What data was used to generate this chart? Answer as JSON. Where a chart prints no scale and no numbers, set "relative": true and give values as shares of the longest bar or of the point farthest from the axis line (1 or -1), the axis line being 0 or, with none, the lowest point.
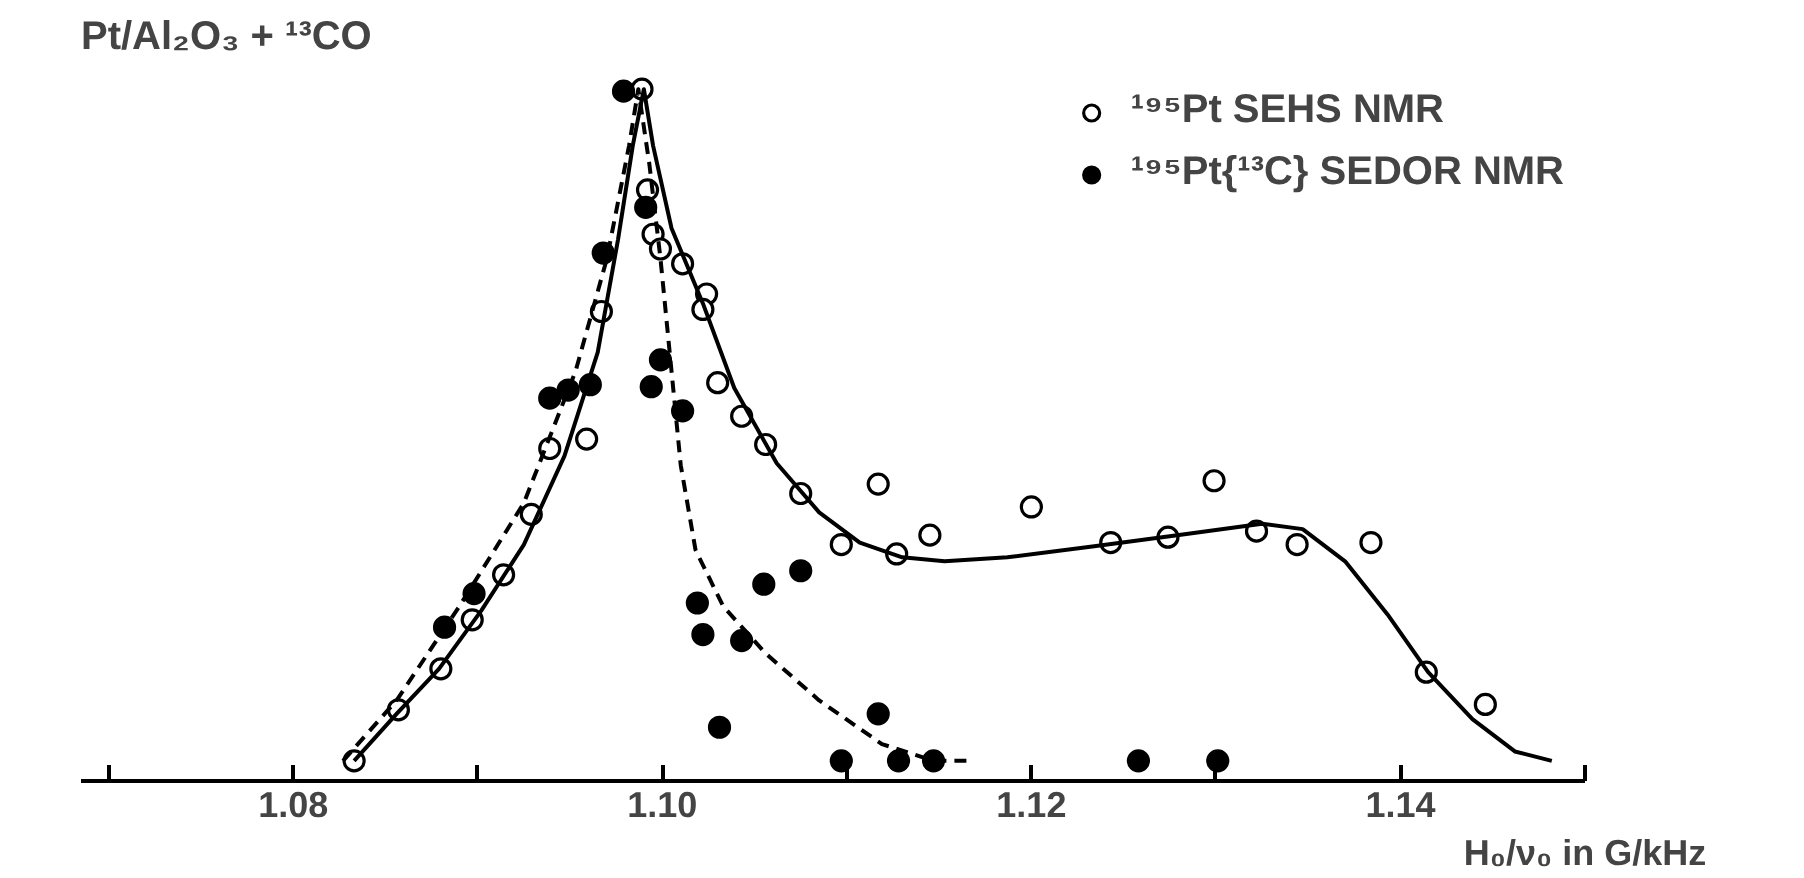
{
  "chart_data": {
    "type": "scatter",
    "title": "Pt/Al₂O₃ + ¹³CO",
    "xlabel": "H₀/ν₀ in G/kHz",
    "relative": true,
    "legend": "top right",
    "grid": false,
    "xlim": [
      1.0685,
      1.15
    ],
    "xticks": [
      {
        "value": 1.07,
        "label": null
      },
      1.08,
      {
        "value": 1.09,
        "label": null
      },
      {
        "value": 1.1,
        "label": "1.10"
      },
      {
        "value": 1.11,
        "label": null
      },
      1.12,
      {
        "value": 1.13,
        "label": null
      },
      1.14,
      {
        "value": 1.15,
        "label": null
      }
    ],
    "series": [
      {
        "name": "¹⁹⁵Pt SEHS NMR",
        "marker": "circle",
        "color": "#000000",
        "x": [
          1.0833,
          1.0857,
          1.088,
          1.0897,
          1.0914,
          1.0929,
          1.0939,
          1.0959,
          1.0967,
          1.0989,
          1.0992,
          1.0995,
          1.0999,
          1.1011,
          1.1024,
          1.1022,
          1.103,
          1.1043,
          1.1056,
          1.1075,
          1.1097,
          1.1117,
          1.1127,
          1.1145,
          1.12,
          1.1243,
          1.1274,
          1.1299,
          1.1322,
          1.1344,
          1.1384,
          1.1414,
          1.1446
        ],
        "values": [
          0,
          0.076,
          0.137,
          0.21,
          0.277,
          0.367,
          0.465,
          0.479,
          0.669,
          1.0,
          0.85,
          0.784,
          0.762,
          0.74,
          0.695,
          0.672,
          0.563,
          0.513,
          0.471,
          0.398,
          0.322,
          0.412,
          0.308,
          0.336,
          0.378,
          0.325,
          0.333,
          0.417,
          0.342,
          0.322,
          0.325,
          0.132,
          0.084
        ]
      },
      {
        "name": "¹⁹⁵Pt{¹³C} SEDOR NMR",
        "marker": "circle",
        "color": "#000000",
        "x": [
          1.0882,
          1.0898,
          1.0939,
          1.0949,
          1.0961,
          1.0968,
          1.0979,
          1.0991,
          1.0994,
          1.0999,
          1.1011,
          1.1019,
          1.1022,
          1.1031,
          1.1043,
          1.1055,
          1.1075,
          1.1097,
          1.1117,
          1.1128,
          1.1147,
          1.1258,
          1.1301
        ],
        "values": [
          0.199,
          0.249,
          0.54,
          0.552,
          0.56,
          0.756,
          0.997,
          0.824,
          0.557,
          0.597,
          0.521,
          0.235,
          0.188,
          0.05,
          0.179,
          0.263,
          0.283,
          0,
          0.07,
          0,
          0,
          0,
          0
        ]
      },
      {
        "type": "line",
        "marker": "none",
        "line_style": "solid",
        "color": "#000000",
        "x": [
          1.0833,
          1.0856,
          1.0879,
          1.0902,
          1.0925,
          1.0947,
          1.0965,
          1.0976,
          1.0984,
          1.099,
          1.0995,
          1.1005,
          1.1022,
          1.1039,
          1.1062,
          1.1085,
          1.1107,
          1.113,
          1.1153,
          1.1187,
          1.1233,
          1.1279,
          1.1325,
          1.1347,
          1.137,
          1.1393,
          1.1415,
          1.1439,
          1.1462,
          1.1482
        ],
        "values": [
          0,
          0.07,
          0.137,
          0.224,
          0.322,
          0.454,
          0.608,
          0.776,
          0.916,
          1.0,
          0.916,
          0.793,
          0.681,
          0.555,
          0.443,
          0.37,
          0.325,
          0.303,
          0.297,
          0.303,
          0.319,
          0.336,
          0.353,
          0.345,
          0.297,
          0.218,
          0.132,
          0.062,
          0.014,
          0
        ]
      },
      {
        "type": "line",
        "marker": "none",
        "line_style": "dashed",
        "color": "#000000",
        "x": [
          1.0827,
          1.0856,
          1.089,
          1.0925,
          1.0953,
          1.097,
          1.0982,
          1.0987,
          1.0993,
          1.0999,
          1.1005,
          1.101,
          1.1018,
          1.1033,
          1.1056,
          1.1085,
          1.1119,
          1.1147,
          1.1165
        ],
        "values": [
          0,
          0.09,
          0.23,
          0.384,
          0.58,
          0.748,
          0.916,
          1.0,
          0.888,
          0.748,
          0.58,
          0.44,
          0.314,
          0.23,
          0.16,
          0.09,
          0.025,
          0,
          0
        ]
      }
    ]
  }
}
